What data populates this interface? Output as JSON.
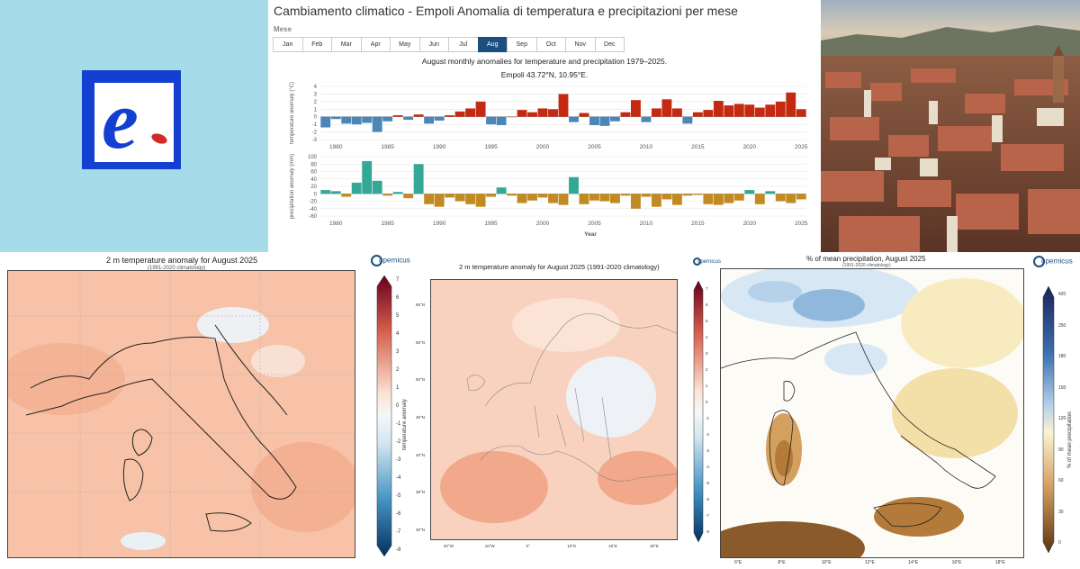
{
  "logo": {
    "letter": "e"
  },
  "app": {
    "title": "Cambiamento climatico - Empoli Anomalia di temperatura e precipitazioni per mese",
    "month_label": "Mese",
    "months": [
      "Jan",
      "Feb",
      "Mar",
      "Apr",
      "May",
      "Jun",
      "Jul",
      "Aug",
      "Sep",
      "Oct",
      "Nov",
      "Dec"
    ],
    "selected_month": "Aug"
  },
  "chart_data": {
    "type": "bar",
    "title": "August monthly anomalies for temperature and precipitation 1979–2025.",
    "subtitle": "Empoli 43.72°N, 10.95°E.",
    "xlabel": "Year",
    "x": [
      1979,
      1980,
      1981,
      1982,
      1983,
      1984,
      1985,
      1986,
      1987,
      1988,
      1989,
      1990,
      1991,
      1992,
      1993,
      1994,
      1995,
      1996,
      1997,
      1998,
      1999,
      2000,
      2001,
      2002,
      2003,
      2004,
      2005,
      2006,
      2007,
      2008,
      2009,
      2010,
      2011,
      2012,
      2013,
      2014,
      2015,
      2016,
      2017,
      2018,
      2019,
      2020,
      2021,
      2022,
      2023,
      2024,
      2025
    ],
    "x_ticks": [
      1980,
      1985,
      1990,
      1995,
      2000,
      2005,
      2010,
      2015,
      2020,
      2025
    ],
    "temperature": {
      "ylabel": "temperature anomaly (°C)",
      "ylim": [
        -3,
        4
      ],
      "y_ticks": [
        -3,
        -2,
        -1,
        0,
        1,
        2,
        3,
        4
      ],
      "positive_color": "#c42a11",
      "negative_color": "#4a86b8",
      "values": [
        -1.4,
        -0.3,
        -0.9,
        -1.0,
        -0.8,
        -2.0,
        -0.6,
        0.2,
        -0.4,
        0.3,
        -0.9,
        -0.5,
        0.2,
        0.7,
        1.1,
        2.0,
        -1.0,
        -1.1,
        0.0,
        0.9,
        0.6,
        1.1,
        1.0,
        3.0,
        -0.7,
        0.5,
        -1.1,
        -1.2,
        -0.6,
        0.6,
        2.2,
        -0.7,
        1.1,
        2.3,
        1.1,
        -0.9,
        0.6,
        0.9,
        2.1,
        1.5,
        1.7,
        1.6,
        1.2,
        1.6,
        2.0,
        3.2,
        1.0
      ]
    },
    "precipitation": {
      "ylabel": "precipitation anomaly (mm)",
      "ylim": [
        -60,
        100
      ],
      "y_ticks": [
        -60,
        -40,
        -20,
        0,
        20,
        40,
        60,
        80,
        100
      ],
      "positive_color": "#33a896",
      "negative_color": "#c28a22",
      "values": [
        10,
        7,
        -8,
        30,
        88,
        35,
        -5,
        5,
        -12,
        80,
        -28,
        -35,
        -10,
        -20,
        -28,
        -35,
        -8,
        17,
        -5,
        -25,
        -18,
        -10,
        -25,
        -30,
        45,
        -28,
        -18,
        -20,
        -25,
        -5,
        -40,
        -8,
        -35,
        -15,
        -30,
        -5,
        -3,
        -28,
        -30,
        -25,
        -18,
        10,
        -28,
        7,
        -20,
        -25,
        -15
      ]
    }
  },
  "map1": {
    "title": "2 m temperature anomaly for August 2025",
    "subtitle": "(1991-2020 climatology)",
    "logo": "opernicus",
    "colorbar_label": "temperature anomaly",
    "colorbar_ticks": [
      "7",
      "6",
      "5",
      "4",
      "3",
      "2",
      "1",
      "0",
      "-1",
      "-2",
      "-3",
      "-4",
      "-5",
      "-6",
      "-7",
      "-8"
    ]
  },
  "map2": {
    "title": "2 m temperature anomaly for August 2025 (1991-2020 climatology)",
    "logo": "opernicus",
    "colorbar_label": "temperature anomaly",
    "lat_labels": [
      "65°N",
      "55°N",
      "50°N",
      "45°N",
      "40°N",
      "35°N",
      "30°N"
    ],
    "lon_labels": [
      "20°W",
      "10°W",
      "0°",
      "10°E",
      "20°E",
      "30°E"
    ],
    "colorbar_ticks": [
      "7",
      "6",
      "5",
      "4",
      "3",
      "2",
      "1",
      "0",
      "-1",
      "-2",
      "-3",
      "-4",
      "-5",
      "-6",
      "-7",
      "-8"
    ]
  },
  "map3": {
    "title": "% of mean precipitation, August 2025",
    "subtitle": "(1991-2020 climatology)",
    "logo": "opernicus",
    "colorbar_label": "% of mean precipitation",
    "colorbar_ticks": [
      "420",
      "250",
      "180",
      "150",
      "120",
      "90",
      "60",
      "30",
      "0"
    ],
    "lon_labels": [
      "6°E",
      "8°E",
      "10°E",
      "12°E",
      "14°E",
      "16°E",
      "18°E"
    ]
  },
  "colors": {
    "logo_bg": "#a6dce9",
    "logo_blue": "#1340d0",
    "tab_active": "#1c4e80"
  }
}
